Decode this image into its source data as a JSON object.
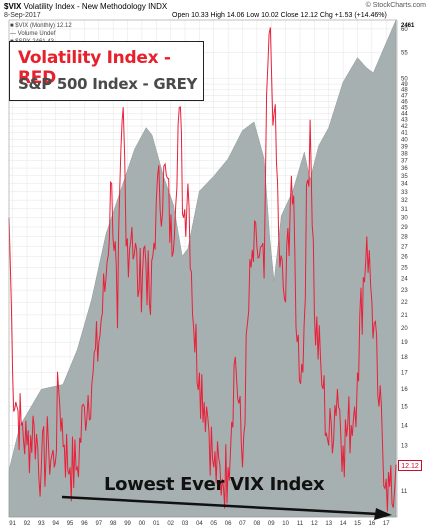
{
  "header": {
    "symbol": "$VIX",
    "name": "Volatility Index - New Methodology INDX",
    "watermark": "© StockCharts.com",
    "date": "8-Sep-2017",
    "ohlc": "Open 10.33  High 14.06  Low 10.02  Close 12.12  Chg +1.53 (+14.46%)",
    "legend_lines": [
      "■ $VIX (Monthly) 12.12",
      "— Volume Undef",
      "■ $SPX 2461.43"
    ]
  },
  "legend_box": {
    "red_text": "Volatility Index - RED",
    "grey_text": "S&P 500 Index - GREY"
  },
  "annotation": "Lowest Ever VIX Index",
  "last_value_tag": "12.12",
  "spx_value_tag": "2461",
  "colors": {
    "vix": "#e8203a",
    "spx_fill": "#a7b0b0",
    "grid": "#e4e4e4",
    "arrow": "#111111"
  },
  "chart_data": {
    "type": "line",
    "title": "",
    "xlabel": "",
    "ylabel": "",
    "x_ticks": [
      "91",
      "92",
      "93",
      "94",
      "95",
      "96",
      "97",
      "98",
      "99",
      "00",
      "01",
      "02",
      "03",
      "04",
      "05",
      "06",
      "07",
      "08",
      "09",
      "10",
      "11",
      "12",
      "13",
      "14",
      "15",
      "16",
      "17"
    ],
    "y_ticks": [
      11,
      12,
      13,
      14,
      15,
      16,
      17,
      18,
      19,
      20,
      21,
      22,
      23,
      24,
      25,
      26,
      27,
      28,
      29,
      30,
      31,
      32,
      33,
      34,
      35,
      36,
      37,
      38,
      39,
      40,
      41,
      42,
      43,
      44,
      45,
      46,
      47,
      48,
      49,
      50,
      55,
      60
    ],
    "xlim": [
      1990.75,
      2017.75
    ],
    "ylim": [
      10,
      62
    ],
    "y_scale": "log",
    "grid": true,
    "series": [
      {
        "name": "VIX",
        "x": [
          1990.75,
          1991.0,
          1991.3,
          1991.6,
          1992.0,
          1992.5,
          1993.0,
          1993.5,
          1993.9,
          1994.2,
          1994.6,
          1995.0,
          1995.5,
          1996.0,
          1996.6,
          1997.0,
          1997.5,
          1997.9,
          1998.3,
          1998.7,
          1998.9,
          1999.3,
          1999.8,
          2000.2,
          2000.6,
          2001.0,
          2001.7,
          2002.1,
          2002.6,
          2002.9,
          2003.2,
          2003.6,
          2004.0,
          2004.5,
          2005.0,
          2005.6,
          2006.0,
          2006.5,
          2007.0,
          2007.6,
          2008.0,
          2008.5,
          2008.85,
          2009.2,
          2009.6,
          2010.0,
          2010.4,
          2010.8,
          2011.2,
          2011.7,
          2012.0,
          2012.6,
          2013.0,
          2013.6,
          2014.0,
          2014.8,
          2015.0,
          2015.65,
          2016.0,
          2016.5,
          2017.0,
          2017.4,
          2017.68
        ],
        "values": [
          30,
          17,
          15,
          14,
          13,
          14,
          12,
          13,
          12,
          16,
          13,
          12,
          12,
          15,
          17,
          19,
          24,
          34,
          20,
          45,
          27,
          29,
          23,
          27,
          21,
          32,
          35,
          26,
          45,
          30,
          34,
          20,
          17,
          15,
          12,
          11.5,
          12,
          18,
          12,
          25,
          27,
          24,
          59,
          44,
          25,
          22,
          35,
          19,
          17,
          43,
          21,
          16,
          13,
          16,
          13,
          15,
          17,
          28,
          22,
          15,
          11.5,
          10.5,
          12.12
        ]
      },
      {
        "name": "S&P 500",
        "x": [
          1990.75,
          1991.5,
          1993.0,
          1994.5,
          1995.5,
          1996.5,
          1997.5,
          1998.5,
          1999.5,
          2000.3,
          2000.7,
          2001.5,
          2002.2,
          2002.8,
          2003.2,
          2004.0,
          2005.0,
          2006.0,
          2007.0,
          2007.8,
          2008.5,
          2008.9,
          2009.2,
          2009.7,
          2010.5,
          2011.3,
          2011.7,
          2012.3,
          2013.0,
          2014.0,
          2015.0,
          2015.6,
          2016.1,
          2016.8,
          2017.68
        ],
        "values": [
          310,
          380,
          450,
          460,
          540,
          680,
          920,
          1120,
          1360,
          1500,
          1450,
          1200,
          1050,
          830,
          860,
          1120,
          1200,
          1300,
          1480,
          1540,
          1300,
          900,
          740,
          1000,
          1120,
          1340,
          1180,
          1380,
          1500,
          1850,
          2070,
          1980,
          1930,
          2150,
          2461
        ]
      }
    ]
  }
}
